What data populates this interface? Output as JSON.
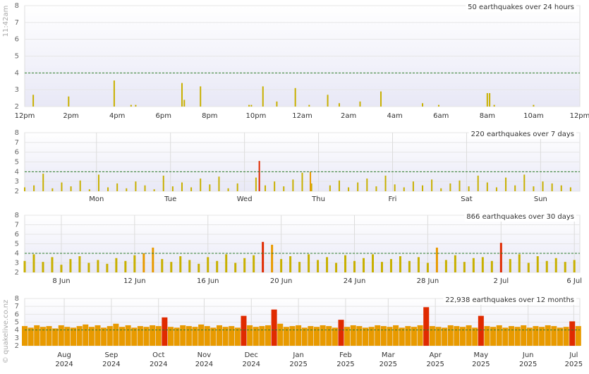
{
  "watermark": {
    "time": "11:42am",
    "site": "© quakelive.co.nz"
  },
  "chart_data": [
    {
      "type": "bar",
      "title": "50 earthquakes over 24 hours",
      "ylim": [
        2,
        8
      ],
      "yticks": [
        2,
        3,
        4,
        5,
        6,
        7,
        8
      ],
      "xlim": [
        0,
        24
      ],
      "threshold": 4,
      "grid": false,
      "color_scale": [
        {
          "min": 2,
          "color": "#c8b000"
        },
        {
          "min": 4,
          "color": "#e89a00"
        },
        {
          "min": 5,
          "color": "#e02a00"
        }
      ],
      "xticks": [
        {
          "value": 0,
          "label": "12pm"
        },
        {
          "value": 2,
          "label": "2pm"
        },
        {
          "value": 4,
          "label": "4pm"
        },
        {
          "value": 6,
          "label": "6pm"
        },
        {
          "value": 8,
          "label": "8pm"
        },
        {
          "value": 10,
          "label": "10pm"
        },
        {
          "value": 12,
          "label": "12am"
        },
        {
          "value": 14,
          "label": "2am"
        },
        {
          "value": 16,
          "label": "4am"
        },
        {
          "value": 18,
          "label": "6am"
        },
        {
          "value": 20,
          "label": "8am"
        },
        {
          "value": 22,
          "label": "10am"
        },
        {
          "value": 24,
          "label": "12pm"
        }
      ],
      "x": [
        0.37,
        1.9,
        3.87,
        4.6,
        4.8,
        6.8,
        6.9,
        7.6,
        9.7,
        9.8,
        10.3,
        10.9,
        11.7,
        12.3,
        13.1,
        13.6,
        14.5,
        15.4,
        17.2,
        17.9,
        20.0,
        20.1,
        20.3,
        22.0
      ],
      "values": [
        2.7,
        2.6,
        3.55,
        2.1,
        2.1,
        3.4,
        2.4,
        3.2,
        2.1,
        2.1,
        3.2,
        2.3,
        3.1,
        2.1,
        2.7,
        2.2,
        2.3,
        2.9,
        2.2,
        2.1,
        2.8,
        2.8,
        2.1,
        2.1
      ]
    },
    {
      "type": "bar",
      "title": "220 earthquakes over 7 days",
      "ylim": [
        2,
        8
      ],
      "yticks": [
        2,
        3,
        4,
        5,
        6,
        7,
        8
      ],
      "xlim": [
        0,
        7.5
      ],
      "threshold": 4,
      "grid": true,
      "color_scale": [
        {
          "min": 2,
          "color": "#c8b000"
        },
        {
          "min": 4,
          "color": "#e89a00"
        },
        {
          "min": 5,
          "color": "#e02a00"
        }
      ],
      "xticks": [
        {
          "value": 0.97,
          "label": "Mon"
        },
        {
          "value": 1.97,
          "label": "Tue"
        },
        {
          "value": 2.97,
          "label": "Wed"
        },
        {
          "value": 3.97,
          "label": "Thu"
        },
        {
          "value": 4.97,
          "label": "Fri"
        },
        {
          "value": 5.97,
          "label": "Sat"
        },
        {
          "value": 6.97,
          "label": "Sun"
        }
      ],
      "x": [
        0,
        0.125,
        0.25,
        0.375,
        0.5,
        0.625,
        0.75,
        0.875,
        1,
        1.125,
        1.25,
        1.375,
        1.5,
        1.625,
        1.75,
        1.875,
        2,
        2.125,
        2.25,
        2.375,
        2.5,
        2.625,
        2.75,
        2.875,
        3.17,
        3.125,
        3.25,
        3.375,
        3.5,
        3.625,
        3.75,
        3.875,
        3.86,
        4.125,
        4.25,
        4.375,
        4.5,
        4.625,
        4.75,
        4.875,
        5,
        5.125,
        5.25,
        5.375,
        5.5,
        5.625,
        5.75,
        5.875,
        6,
        6.125,
        6.25,
        6.375,
        6.5,
        6.625,
        6.75,
        6.875,
        7,
        7.125,
        7.25,
        7.375
      ],
      "values": [
        2.4,
        2.6,
        3.8,
        2.3,
        2.9,
        2.5,
        3.1,
        2.2,
        3.7,
        2.4,
        2.8,
        2.3,
        3.0,
        2.6,
        2.2,
        3.6,
        2.5,
        2.9,
        2.4,
        3.3,
        2.7,
        3.5,
        2.3,
        2.8,
        5.1,
        3.4,
        2.6,
        3.0,
        2.5,
        3.2,
        3.9,
        2.8,
        4.0,
        2.6,
        3.1,
        2.4,
        2.9,
        3.3,
        2.5,
        3.6,
        2.7,
        2.4,
        3.0,
        2.6,
        3.2,
        2.3,
        2.8,
        3.1,
        2.5,
        3.6,
        2.9,
        2.4,
        3.4,
        2.6,
        3.7,
        2.5,
        3.0,
        2.8,
        2.6,
        2.4
      ]
    },
    {
      "type": "bar",
      "title": "866 earthquakes over 30 days",
      "ylim": [
        2,
        8
      ],
      "yticks": [
        2,
        3,
        4,
        5,
        6,
        7,
        8
      ],
      "xlim": [
        0,
        30.3
      ],
      "threshold": 4,
      "grid": true,
      "color_scale": [
        {
          "min": 2,
          "color": "#c8b000"
        },
        {
          "min": 4,
          "color": "#e89a00"
        },
        {
          "min": 5,
          "color": "#e02a00"
        }
      ],
      "xticks": [
        {
          "value": 2,
          "label": "8 Jun"
        },
        {
          "value": 6,
          "label": "12 Jun"
        },
        {
          "value": 10,
          "label": "16 Jun"
        },
        {
          "value": 14,
          "label": "20 Jun"
        },
        {
          "value": 18,
          "label": "24 Jun"
        },
        {
          "value": 22,
          "label": "28 Jun"
        },
        {
          "value": 26,
          "label": "2 Jul"
        },
        {
          "value": 30,
          "label": "6 Jul"
        }
      ],
      "x": [
        0,
        0.5,
        1,
        1.5,
        2,
        2.5,
        3,
        3.5,
        4,
        4.5,
        5,
        5.5,
        6,
        6.5,
        7,
        7.5,
        8,
        8.5,
        9,
        9.5,
        10,
        10.5,
        11,
        11.5,
        12,
        12.5,
        13,
        13.5,
        14,
        14.5,
        15,
        15.5,
        16,
        16.5,
        17,
        17.5,
        18,
        18.5,
        19,
        19.5,
        20,
        20.5,
        21,
        21.5,
        22,
        22.5,
        23,
        23.5,
        24,
        24.5,
        25,
        25.5,
        26,
        26.5,
        27,
        27.5,
        28,
        28.5,
        29,
        29.5,
        30
      ],
      "values": [
        3.2,
        3.9,
        3.1,
        3.6,
        2.8,
        3.4,
        3.7,
        3.0,
        3.3,
        2.9,
        3.5,
        3.2,
        3.8,
        4.0,
        4.6,
        3.4,
        3.1,
        3.7,
        3.3,
        2.9,
        3.6,
        3.2,
        3.9,
        3.0,
        3.5,
        3.8,
        5.2,
        4.9,
        3.4,
        3.7,
        3.1,
        3.9,
        3.3,
        3.6,
        3.0,
        3.8,
        3.2,
        3.5,
        3.9,
        3.1,
        3.4,
        3.7,
        3.2,
        3.6,
        3.0,
        4.6,
        3.3,
        3.8,
        3.1,
        3.5,
        3.6,
        3.2,
        5.1,
        3.4,
        3.9,
        3.0,
        3.7,
        3.2,
        3.5,
        3.1,
        3.3
      ]
    },
    {
      "type": "bar",
      "title": "22,938 earthquakes over 12 months",
      "ylim": [
        2,
        8
      ],
      "yticks": [
        2,
        3,
        4,
        5,
        6,
        7,
        8
      ],
      "xlim": [
        0,
        365
      ],
      "threshold": 4,
      "grid": true,
      "color_scale": [
        {
          "min": 2,
          "color": "#c8b000"
        },
        {
          "min": 4,
          "color": "#e89a00"
        },
        {
          "min": 5,
          "color": "#e02a00"
        }
      ],
      "xticks": [
        {
          "value": 26,
          "label": "Aug",
          "year": "2024"
        },
        {
          "value": 57,
          "label": "Sep",
          "year": "2024"
        },
        {
          "value": 88,
          "label": "Oct",
          "year": "2024"
        },
        {
          "value": 118,
          "label": "Nov",
          "year": "2024"
        },
        {
          "value": 149,
          "label": "Dec",
          "year": "2024"
        },
        {
          "value": 180,
          "label": "Jan",
          "year": "2025"
        },
        {
          "value": 211,
          "label": "Feb",
          "year": "2025"
        },
        {
          "value": 239,
          "label": "Mar",
          "year": "2025"
        },
        {
          "value": 270,
          "label": "Apr",
          "year": "2025"
        },
        {
          "value": 300,
          "label": "May",
          "year": "2025"
        },
        {
          "value": 331,
          "label": "Jun",
          "year": "2025"
        },
        {
          "value": 361,
          "label": "Jul",
          "year": "2025"
        }
      ],
      "x": [
        0,
        4,
        8,
        12,
        16,
        20,
        24,
        28,
        32,
        36,
        40,
        44,
        48,
        52,
        56,
        60,
        64,
        68,
        72,
        76,
        80,
        84,
        88,
        92,
        96,
        100,
        104,
        108,
        112,
        116,
        120,
        124,
        128,
        132,
        136,
        140,
        144,
        148,
        152,
        156,
        160,
        164,
        168,
        172,
        176,
        180,
        184,
        188,
        192,
        196,
        200,
        204,
        208,
        212,
        216,
        220,
        224,
        228,
        232,
        236,
        240,
        244,
        248,
        252,
        256,
        260,
        264,
        268,
        272,
        276,
        280,
        284,
        288,
        292,
        296,
        300,
        304,
        308,
        312,
        316,
        320,
        324,
        328,
        332,
        336,
        340,
        344,
        348,
        352,
        356,
        360,
        364
      ],
      "values": [
        4.5,
        4.3,
        4.6,
        4.4,
        4.5,
        4.2,
        4.6,
        4.4,
        4.3,
        4.5,
        4.7,
        4.4,
        4.6,
        4.3,
        4.5,
        4.8,
        4.4,
        4.6,
        4.3,
        4.5,
        4.4,
        4.6,
        4.5,
        5.6,
        4.4,
        4.3,
        4.6,
        4.5,
        4.4,
        4.7,
        4.5,
        4.3,
        4.6,
        4.4,
        4.5,
        4.3,
        5.8,
        4.6,
        4.4,
        4.5,
        4.6,
        6.6,
        4.8,
        4.4,
        4.5,
        4.6,
        4.3,
        4.5,
        4.4,
        4.6,
        4.5,
        4.3,
        5.3,
        4.4,
        4.6,
        4.5,
        4.3,
        4.4,
        4.6,
        4.5,
        4.4,
        4.6,
        4.3,
        4.5,
        4.4,
        4.6,
        6.9,
        4.5,
        4.4,
        4.3,
        4.6,
        4.5,
        4.4,
        4.6,
        4.3,
        5.8,
        4.5,
        4.4,
        4.6,
        4.3,
        4.5,
        4.4,
        4.6,
        4.3,
        4.5,
        4.4,
        4.6,
        4.5,
        4.3,
        4.4,
        5.1,
        4.5
      ]
    }
  ]
}
